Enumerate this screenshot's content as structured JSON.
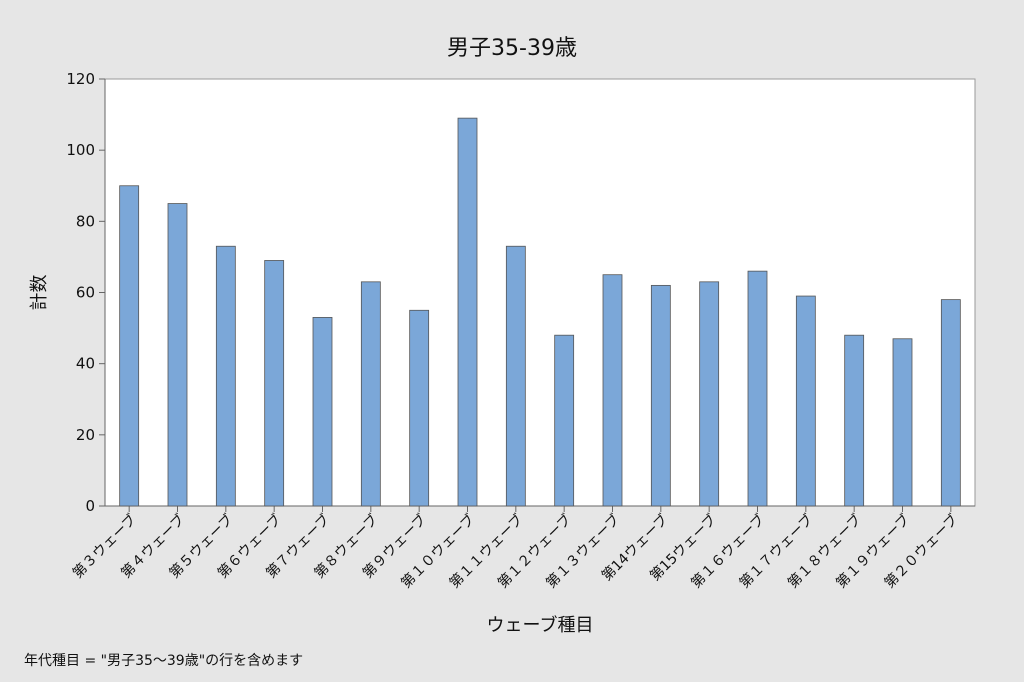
{
  "chart_data": {
    "type": "bar",
    "title": "男子35-39歳",
    "xlabel": "ウェーブ種目",
    "ylabel": "計数",
    "ylim": [
      0,
      120
    ],
    "yticks": [
      0,
      20,
      40,
      60,
      80,
      100,
      120
    ],
    "categories": [
      "第３ウェーブ",
      "第４ウェーブ",
      "第５ウェーブ",
      "第６ウェーブ",
      "第７ウェーブ",
      "第８ウェーブ",
      "第９ウェーブ",
      "第１０ウェーブ",
      "第１１ウェーブ",
      "第１２ウェーブ",
      "第１３ウェーブ",
      "第14ウェーブ",
      "第15ウェーブ",
      "第１６ウェーブ",
      "第１７ウェーブ",
      "第１８ウェーブ",
      "第１９ウェーブ",
      "第２０ウェーブ"
    ],
    "values": [
      90,
      85,
      73,
      69,
      53,
      63,
      55,
      109,
      73,
      48,
      65,
      62,
      63,
      66,
      59,
      48,
      47,
      58
    ],
    "grid": false,
    "bar_color": "#7ba7d8",
    "bar_edge_color": "#555555",
    "plot_background": "#ffffff",
    "page_background": "#e6e6e6"
  },
  "footnote": "年代種目 = \"男子35～39歳\"の行を含めます"
}
